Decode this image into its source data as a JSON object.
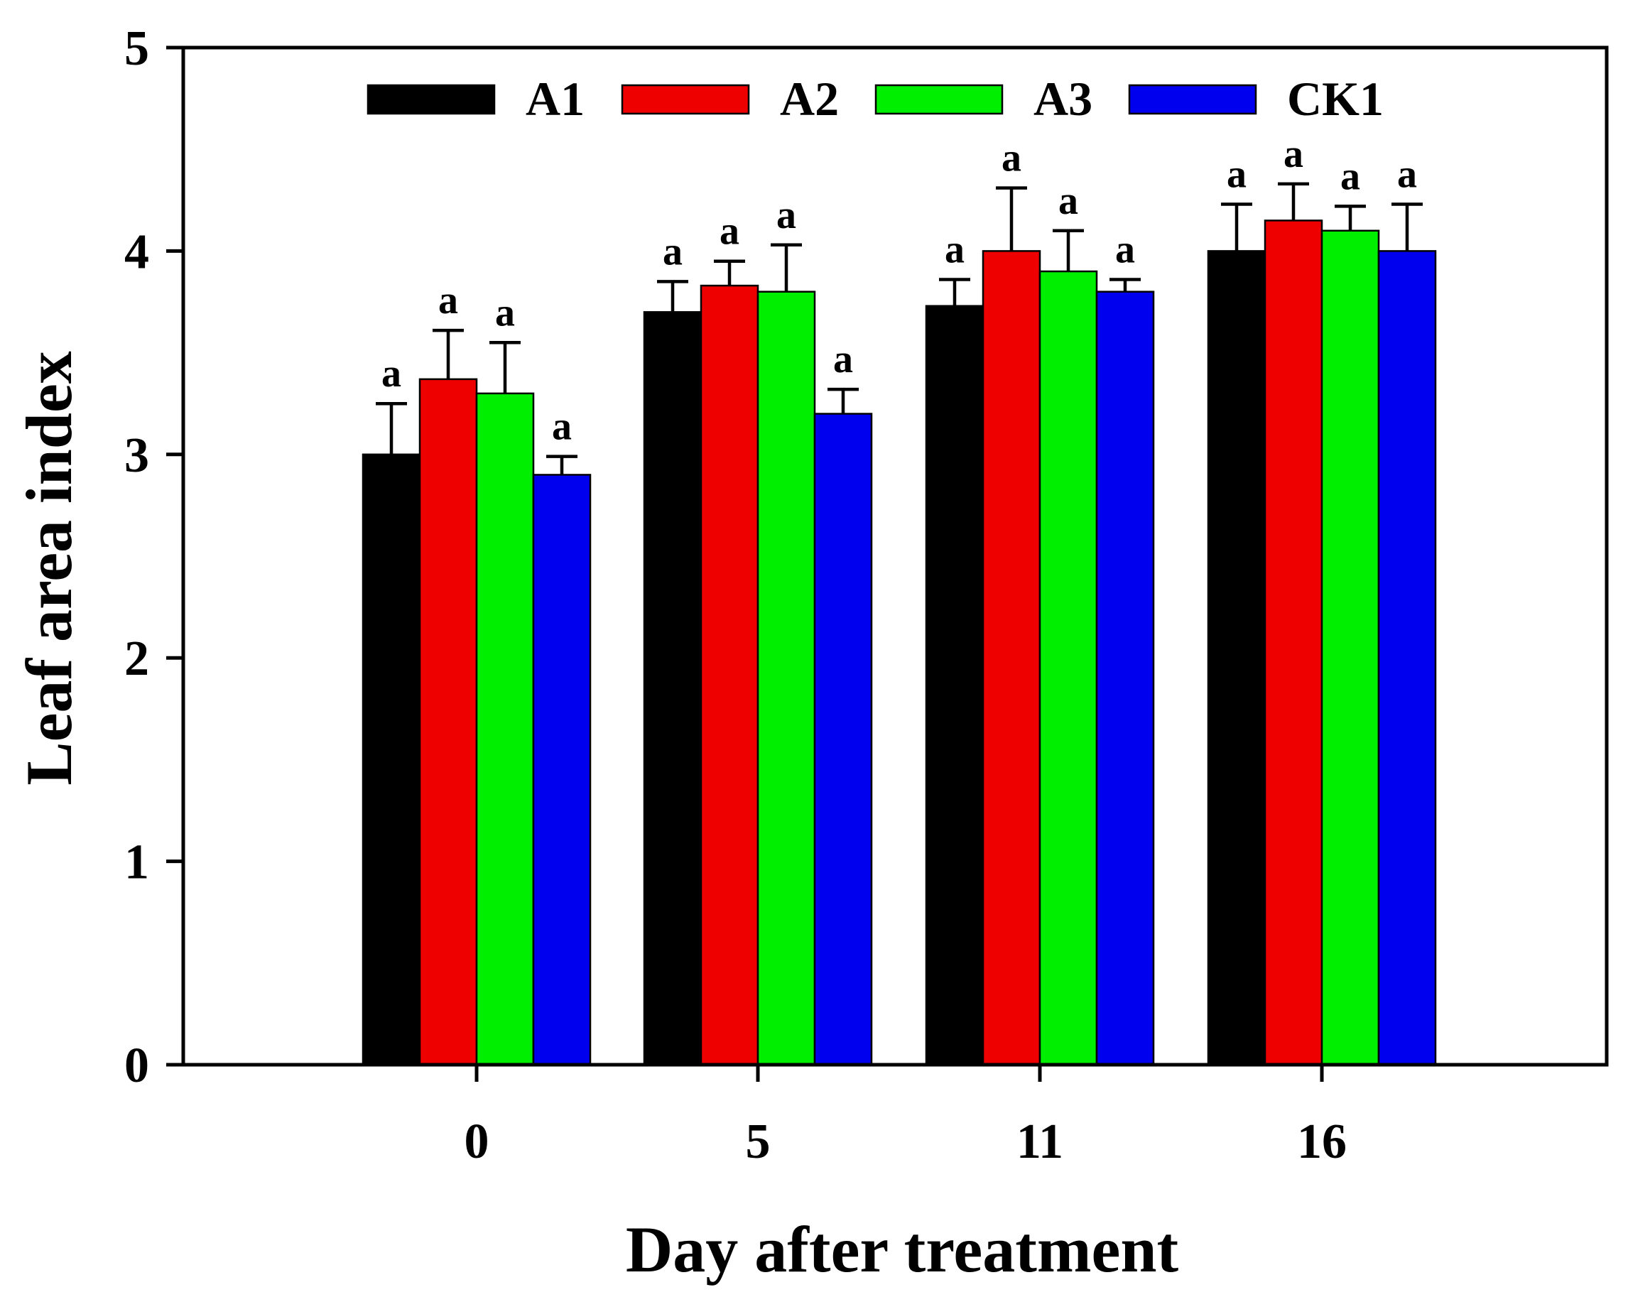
{
  "chart_data": {
    "type": "bar",
    "xlabel": "Day after treatment",
    "ylabel": "Leaf area index",
    "categories": [
      "0",
      "5",
      "11",
      "16"
    ],
    "ylim": [
      0,
      5
    ],
    "yticks": [
      "0",
      "1",
      "2",
      "3",
      "4",
      "5"
    ],
    "legend_position": "top",
    "series": [
      {
        "name": "A1",
        "color": "#000000",
        "values": [
          3.0,
          3.7,
          3.73,
          4.0
        ],
        "errors": [
          0.25,
          0.15,
          0.13,
          0.23
        ],
        "labels": [
          "a",
          "a",
          "a",
          "a"
        ]
      },
      {
        "name": "A2",
        "color": "#ee0000",
        "values": [
          3.37,
          3.83,
          4.0,
          4.15
        ],
        "errors": [
          0.24,
          0.12,
          0.31,
          0.18
        ],
        "labels": [
          "a",
          "a",
          "a",
          "a"
        ]
      },
      {
        "name": "A3",
        "color": "#00ee00",
        "values": [
          3.3,
          3.8,
          3.9,
          4.1
        ],
        "errors": [
          0.25,
          0.23,
          0.2,
          0.12
        ],
        "labels": [
          "a",
          "a",
          "a",
          "a"
        ]
      },
      {
        "name": "CK1",
        "color": "#0000ee",
        "values": [
          2.9,
          3.2,
          3.8,
          4.0
        ],
        "errors": [
          0.09,
          0.12,
          0.06,
          0.23
        ],
        "labels": [
          "a",
          "a",
          "a",
          "a"
        ]
      }
    ]
  }
}
